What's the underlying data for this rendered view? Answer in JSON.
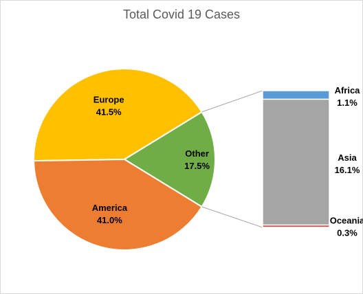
{
  "chart_data": {
    "type": "pie",
    "subtype": "bar-of-pie",
    "title": "Total Covid 19 Cases",
    "pie": {
      "slices": [
        {
          "label": "Europe",
          "value": 41.5,
          "value_label": "41.5%",
          "color": "#FFC000"
        },
        {
          "label": "Other",
          "value": 17.5,
          "value_label": "17.5%",
          "color": "#70AD47"
        },
        {
          "label": "America",
          "value": 41.0,
          "value_label": "41.0%",
          "color": "#ED7D31"
        }
      ]
    },
    "secondary_bar": {
      "breakdown_of": "Other",
      "segments": [
        {
          "label": "Africa",
          "value": 1.1,
          "value_label": "1.1%",
          "color": "#5B9BD5"
        },
        {
          "label": "Asia",
          "value": 16.1,
          "value_label": "16.1%",
          "color": "#A5A5A5"
        },
        {
          "label": "Oceania",
          "value": 0.3,
          "value_label": "0.3%",
          "color": "#C0504D"
        }
      ]
    },
    "legend": "none"
  }
}
